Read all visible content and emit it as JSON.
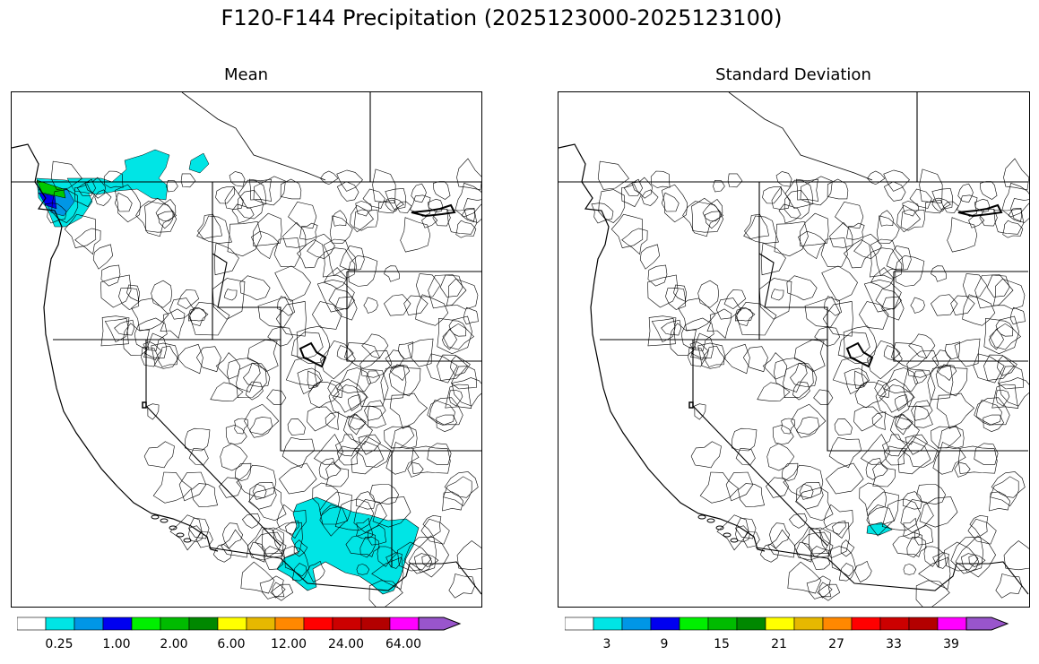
{
  "title": "F120-F144 Precipitation (2025123000-2025123100)",
  "panels": [
    {
      "title": "Mean",
      "colorbar": {
        "colors": [
          "#ffffff",
          "#00e5e5",
          "#0096e6",
          "#0000f0",
          "#00f000",
          "#00bb00",
          "#008800",
          "#ffff00",
          "#e6b800",
          "#ff8800",
          "#ff0000",
          "#cc0000",
          "#b30000",
          "#ff00ff",
          "#9955cc"
        ],
        "tick_labels": [
          "0.25",
          "1.00",
          "2.00",
          "6.00",
          "12.00",
          "24.00",
          "64.00"
        ]
      },
      "shaded_regions": [
        "Washington coast / Puget Sound (cyan, blue, green)",
        "Northern Washington cascades (cyan)",
        "Arizona / southwest New Mexico (cyan)"
      ]
    },
    {
      "title": "Standard Deviation",
      "colorbar": {
        "colors": [
          "#ffffff",
          "#00e5e5",
          "#0096e6",
          "#0000f0",
          "#00f000",
          "#00bb00",
          "#008800",
          "#ffff00",
          "#e6b800",
          "#ff8800",
          "#ff0000",
          "#cc0000",
          "#b30000",
          "#ff00ff",
          "#9955cc"
        ],
        "tick_labels": [
          "3",
          "9",
          "15",
          "21",
          "27",
          "33",
          "39"
        ]
      },
      "shaded_regions": [
        "Southern Arizona small area (cyan)"
      ]
    }
  ]
}
